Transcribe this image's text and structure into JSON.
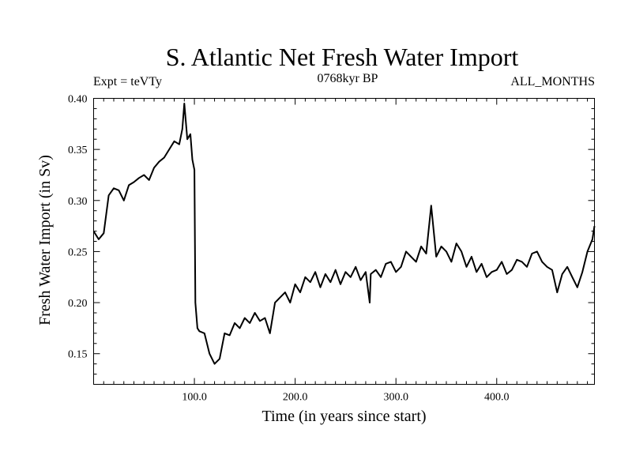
{
  "chart_data": {
    "type": "line",
    "title": "S. Atlantic Net Fresh Water Import",
    "subtitle_left": "Expt = teVTy",
    "subtitle_center": "0768kyr BP",
    "subtitle_right": "ALL_MONTHS",
    "xlabel": "Time (in years since start)",
    "ylabel": "Fresh Water Import (in Sv)",
    "xlim": [
      0,
      497
    ],
    "ylim": [
      0.12,
      0.4
    ],
    "xticks": [
      100,
      200,
      300,
      400
    ],
    "xtick_labels": [
      "100.0",
      "200.0",
      "300.0",
      "400.0"
    ],
    "yticks": [
      0.15,
      0.2,
      0.25,
      0.3,
      0.35,
      0.4
    ],
    "ytick_labels": [
      "0.15",
      "0.20",
      "0.25",
      "0.30",
      "0.35",
      "0.40"
    ],
    "grid": false,
    "series": [
      {
        "x": [
          0,
          5,
          10,
          15,
          20,
          25,
          30,
          35,
          40,
          45,
          50,
          55,
          60,
          65,
          70,
          75,
          80,
          85,
          88,
          90,
          93,
          96,
          98,
          100,
          101,
          103,
          105,
          110,
          115,
          120,
          125,
          130,
          135,
          140,
          145,
          150,
          155,
          160,
          165,
          170,
          175,
          180,
          185,
          190,
          195,
          200,
          205,
          210,
          215,
          220,
          225,
          230,
          235,
          240,
          245,
          250,
          255,
          260,
          265,
          270,
          274,
          275,
          280,
          285,
          290,
          295,
          300,
          305,
          310,
          315,
          320,
          325,
          330,
          335,
          340,
          345,
          350,
          355,
          360,
          365,
          370,
          375,
          380,
          385,
          390,
          395,
          400,
          405,
          410,
          415,
          420,
          425,
          430,
          435,
          440,
          445,
          450,
          455,
          460,
          465,
          470,
          475,
          480,
          485,
          490,
          495,
          497
        ],
        "y": [
          0.27,
          0.262,
          0.268,
          0.305,
          0.312,
          0.31,
          0.3,
          0.315,
          0.318,
          0.322,
          0.325,
          0.32,
          0.332,
          0.338,
          0.342,
          0.35,
          0.358,
          0.355,
          0.37,
          0.395,
          0.36,
          0.365,
          0.34,
          0.33,
          0.2,
          0.175,
          0.172,
          0.17,
          0.15,
          0.14,
          0.145,
          0.17,
          0.168,
          0.18,
          0.175,
          0.185,
          0.18,
          0.19,
          0.182,
          0.185,
          0.17,
          0.2,
          0.205,
          0.21,
          0.2,
          0.218,
          0.21,
          0.225,
          0.22,
          0.23,
          0.215,
          0.228,
          0.22,
          0.232,
          0.218,
          0.23,
          0.225,
          0.235,
          0.222,
          0.23,
          0.2,
          0.228,
          0.232,
          0.225,
          0.238,
          0.24,
          0.23,
          0.235,
          0.25,
          0.245,
          0.24,
          0.255,
          0.248,
          0.295,
          0.245,
          0.255,
          0.25,
          0.24,
          0.258,
          0.25,
          0.235,
          0.245,
          0.23,
          0.238,
          0.225,
          0.23,
          0.232,
          0.24,
          0.228,
          0.232,
          0.242,
          0.24,
          0.235,
          0.248,
          0.25,
          0.24,
          0.235,
          0.232,
          0.21,
          0.228,
          0.235,
          0.225,
          0.215,
          0.23,
          0.25,
          0.262,
          0.275
        ]
      }
    ]
  }
}
